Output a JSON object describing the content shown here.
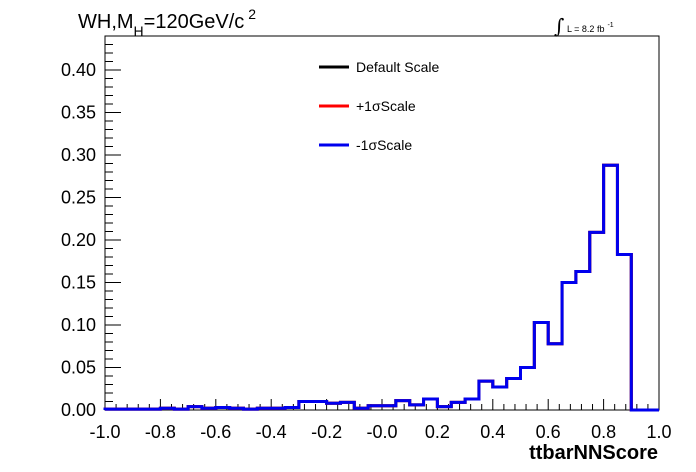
{
  "chart_data": {
    "type": "line",
    "style": "step-histogram",
    "title": {
      "base": "WH,M",
      "sub": "H",
      "rest": "=120GeV/c",
      "sup": "2"
    },
    "lumi": {
      "integral": "∫",
      "text": "L = 8.2 fb",
      "sup": "-1"
    },
    "xlabel": "ttbarNNScore",
    "ylabel": "",
    "xlim": [
      -1.0,
      1.0
    ],
    "ylim": [
      0.0,
      0.44
    ],
    "x_ticks": [
      "-1.0",
      "-0.8",
      "-0.6",
      "-0.4",
      "-0.2",
      "-0.0",
      "0.2",
      "0.4",
      "0.6",
      "0.8",
      "1.0"
    ],
    "y_ticks": [
      "0.00",
      "0.05",
      "0.10",
      "0.15",
      "0.20",
      "0.25",
      "0.30",
      "0.35",
      "0.40"
    ],
    "bin_edges": [
      -1.0,
      -0.95,
      -0.9,
      -0.85,
      -0.8,
      -0.75,
      -0.7,
      -0.65,
      -0.6,
      -0.55,
      -0.5,
      -0.45,
      -0.4,
      -0.35,
      -0.3,
      -0.25,
      -0.2,
      -0.15,
      -0.1,
      -0.05,
      0.0,
      0.05,
      0.1,
      0.15,
      0.2,
      0.25,
      0.3,
      0.35,
      0.4,
      0.45,
      0.5,
      0.55,
      0.6,
      0.65,
      0.7,
      0.75,
      0.8,
      0.85,
      0.9,
      0.95,
      1.0
    ],
    "legend_position": "top-center",
    "series": [
      {
        "name": "Default Scale",
        "color": "#000000",
        "values": [
          0.001,
          0.001,
          0.001,
          0.001,
          0.002,
          0.001,
          0.004,
          0.002,
          0.003,
          0.002,
          0.001,
          0.002,
          0.002,
          0.003,
          0.01,
          0.01,
          0.008,
          0.009,
          0.002,
          0.005,
          0.005,
          0.011,
          0.006,
          0.013,
          0.004,
          0.009,
          0.013,
          0.034,
          0.027,
          0.037,
          0.05,
          0.103,
          0.078,
          0.15,
          0.163,
          0.209,
          0.288,
          0.183,
          0.0,
          0.0
        ]
      },
      {
        "name": "+1σScale",
        "color": "#ff0000",
        "values": [
          0.001,
          0.001,
          0.001,
          0.001,
          0.002,
          0.001,
          0.004,
          0.002,
          0.003,
          0.002,
          0.001,
          0.002,
          0.002,
          0.003,
          0.01,
          0.01,
          0.008,
          0.009,
          0.002,
          0.005,
          0.005,
          0.011,
          0.006,
          0.013,
          0.004,
          0.009,
          0.013,
          0.034,
          0.027,
          0.037,
          0.05,
          0.103,
          0.078,
          0.15,
          0.163,
          0.209,
          0.288,
          0.183,
          0.0,
          0.0
        ]
      },
      {
        "name": "-1σScale",
        "color": "#0000ee",
        "values": [
          0.001,
          0.001,
          0.001,
          0.001,
          0.002,
          0.001,
          0.004,
          0.002,
          0.003,
          0.002,
          0.001,
          0.002,
          0.002,
          0.003,
          0.01,
          0.01,
          0.008,
          0.009,
          0.002,
          0.005,
          0.005,
          0.011,
          0.006,
          0.013,
          0.004,
          0.009,
          0.013,
          0.034,
          0.027,
          0.037,
          0.05,
          0.103,
          0.078,
          0.15,
          0.163,
          0.209,
          0.288,
          0.183,
          0.0,
          0.0
        ]
      }
    ]
  }
}
